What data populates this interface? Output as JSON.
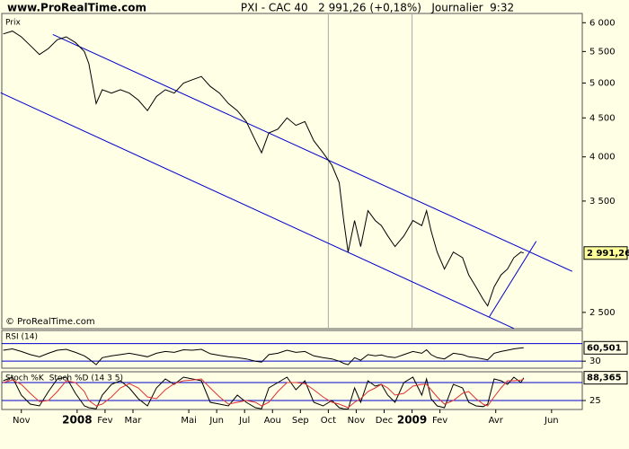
{
  "chart_data": [
    {
      "type": "line",
      "site": "www.ProRealTime.com",
      "title": "PXI - CAC 40   2 991,26 (+0,18%)   Journalier  9:32",
      "ylabel": "Prix",
      "footer": "© ProRealTime.com",
      "log_scale": true,
      "xlim": [
        -0.7,
        20.1
      ],
      "ylim": [
        2380,
        6170
      ],
      "yticks": [
        {
          "value": 6000,
          "label": "6 000"
        },
        {
          "value": 5500,
          "label": "5 500"
        },
        {
          "value": 5000,
          "label": "5 000"
        },
        {
          "value": 4500,
          "label": "4 500"
        },
        {
          "value": 4000,
          "label": "4 000"
        },
        {
          "value": 3500,
          "label": "3 500"
        },
        {
          "value": 2500,
          "label": "2 500"
        }
      ],
      "vgrid": [
        11,
        14
      ],
      "x": [
        -0.65,
        -0.32,
        0,
        0.32,
        0.65,
        0.97,
        1.29,
        1.61,
        1.94,
        2.26,
        2.42,
        2.68,
        2.9,
        3.23,
        3.55,
        3.87,
        4.19,
        4.52,
        4.84,
        5.16,
        5.48,
        5.81,
        6.13,
        6.45,
        6.77,
        7.1,
        7.42,
        7.74,
        8.06,
        8.39,
        8.61,
        8.87,
        9.19,
        9.52,
        9.84,
        10.16,
        10.48,
        10.81,
        11.13,
        11.39,
        11.55,
        11.71,
        11.94,
        12.16,
        12.42,
        12.68,
        12.9,
        13.13,
        13.39,
        13.71,
        14.03,
        14.35,
        14.52,
        14.68,
        14.9,
        15.16,
        15.48,
        15.81,
        16.03,
        16.29,
        16.55,
        16.71,
        16.94,
        17.19,
        17.42,
        17.65,
        17.9,
        18.0
      ],
      "series": [
        {
          "color": "#000000",
          "values": [
            5800,
            5850,
            5750,
            5600,
            5450,
            5550,
            5700,
            5750,
            5650,
            5500,
            5300,
            4700,
            4900,
            4850,
            4900,
            4850,
            4750,
            4600,
            4800,
            4900,
            4850,
            5000,
            5050,
            5100,
            4950,
            4850,
            4700,
            4600,
            4450,
            4200,
            4050,
            4300,
            4350,
            4500,
            4400,
            4450,
            4200,
            4050,
            3900,
            3700,
            3300,
            3000,
            3300,
            3050,
            3400,
            3300,
            3250,
            3150,
            3050,
            3150,
            3300,
            3250,
            3400,
            3200,
            3000,
            2850,
            3000,
            2950,
            2800,
            2700,
            2600,
            2550,
            2700,
            2800,
            2850,
            2950,
            3000,
            2991.26
          ],
          "value_labels": [
            null,
            null,
            null,
            null,
            null,
            null,
            null,
            null,
            null,
            null,
            null,
            null,
            null,
            null,
            null,
            null,
            null,
            null,
            null,
            null,
            null,
            null,
            null,
            null,
            null,
            null,
            null,
            null,
            null,
            null,
            null,
            null,
            null,
            null,
            null,
            null,
            null,
            null,
            null,
            null,
            null,
            null,
            null,
            null,
            null,
            null,
            null,
            null,
            null,
            null,
            null,
            null,
            null,
            null,
            null,
            null,
            null,
            null,
            null,
            null,
            null,
            null,
            null,
            null,
            null,
            null,
            null,
            "2 991,26"
          ]
        }
      ],
      "trendline_color": "#0000cc",
      "trendlines": [
        {
          "x": [
            1.13,
            19.74
          ],
          "y": [
            5790,
            2830
          ]
        },
        {
          "x": [
            -0.74,
            17.65
          ],
          "y": [
            4855,
            2381
          ]
        },
        {
          "x": [
            16.77,
            18.45
          ],
          "y": [
            2467,
            3100
          ]
        }
      ]
    },
    {
      "type": "line",
      "xlim": [
        -0.7,
        20.1
      ],
      "ylim": [
        14,
        100
      ],
      "levels": [
        70,
        30
      ],
      "level_color": "#0000cc",
      "yticks": [
        30
      ],
      "x": [
        -0.65,
        -0.32,
        0,
        0.32,
        0.65,
        0.97,
        1.29,
        1.61,
        1.94,
        2.26,
        2.42,
        2.68,
        2.9,
        3.23,
        3.55,
        3.87,
        4.19,
        4.52,
        4.84,
        5.16,
        5.48,
        5.81,
        6.13,
        6.45,
        6.77,
        7.1,
        7.42,
        7.74,
        8.06,
        8.39,
        8.61,
        8.87,
        9.19,
        9.52,
        9.84,
        10.16,
        10.48,
        10.81,
        11.13,
        11.39,
        11.55,
        11.71,
        11.94,
        12.16,
        12.42,
        12.68,
        12.9,
        13.13,
        13.39,
        13.71,
        14.03,
        14.35,
        14.52,
        14.68,
        14.9,
        15.16,
        15.48,
        15.81,
        16.03,
        16.29,
        16.55,
        16.71,
        16.94,
        17.19,
        17.42,
        17.65,
        17.9,
        18.0
      ],
      "series": [
        {
          "name": "RSI (14)",
          "color": "#000000",
          "values": [
            55,
            58,
            52,
            45,
            40,
            48,
            55,
            57,
            50,
            42,
            35,
            22,
            38,
            42,
            45,
            48,
            44,
            40,
            48,
            52,
            50,
            56,
            55,
            57,
            47,
            43,
            40,
            38,
            35,
            30,
            28,
            45,
            48,
            55,
            50,
            52,
            42,
            38,
            35,
            30,
            25,
            22,
            38,
            32,
            45,
            42,
            44,
            40,
            38,
            45,
            52,
            48,
            56,
            45,
            38,
            35,
            48,
            45,
            40,
            38,
            35,
            33,
            48,
            52,
            55,
            58,
            60,
            60.501
          ],
          "value_labels": [
            null,
            null,
            null,
            null,
            null,
            null,
            null,
            null,
            null,
            null,
            null,
            null,
            null,
            null,
            null,
            null,
            null,
            null,
            null,
            null,
            null,
            null,
            null,
            null,
            null,
            null,
            null,
            null,
            null,
            null,
            null,
            null,
            null,
            null,
            null,
            null,
            null,
            null,
            null,
            null,
            null,
            null,
            null,
            null,
            null,
            null,
            null,
            null,
            null,
            null,
            null,
            null,
            null,
            null,
            null,
            null,
            null,
            null,
            null,
            null,
            null,
            null,
            null,
            null,
            null,
            null,
            null,
            "60,501"
          ]
        }
      ]
    },
    {
      "type": "line",
      "xlim": [
        -0.7,
        20.1
      ],
      "ylim": [
        0,
        105
      ],
      "levels": [
        75,
        25
      ],
      "level_color": "#0000cc",
      "yticks": [
        25
      ],
      "xticks": [
        {
          "value": 0,
          "label": "Nov"
        },
        {
          "value": 2,
          "label": "2008"
        },
        {
          "value": 3,
          "label": "Fev"
        },
        {
          "value": 4,
          "label": "Mar"
        },
        {
          "value": 6,
          "label": "Mai"
        },
        {
          "value": 7,
          "label": "Jun"
        },
        {
          "value": 8,
          "label": "Jul"
        },
        {
          "value": 9,
          "label": "Aou"
        },
        {
          "value": 10,
          "label": "Sep"
        },
        {
          "value": 11,
          "label": "Oct"
        },
        {
          "value": 12,
          "label": "Nov"
        },
        {
          "value": 13,
          "label": "Dec"
        },
        {
          "value": 14,
          "label": "2009"
        },
        {
          "value": 15,
          "label": "Fev"
        },
        {
          "value": 17,
          "label": "Avr"
        },
        {
          "value": 19,
          "label": "Jun"
        }
      ],
      "x": [
        -0.65,
        -0.32,
        0,
        0.32,
        0.65,
        0.97,
        1.29,
        1.61,
        1.94,
        2.26,
        2.42,
        2.68,
        2.9,
        3.23,
        3.55,
        3.87,
        4.19,
        4.52,
        4.84,
        5.16,
        5.48,
        5.81,
        6.13,
        6.45,
        6.77,
        7.1,
        7.42,
        7.74,
        8.06,
        8.39,
        8.61,
        8.87,
        9.19,
        9.52,
        9.84,
        10.16,
        10.48,
        10.81,
        11.13,
        11.39,
        11.55,
        11.71,
        11.94,
        12.16,
        12.42,
        12.68,
        12.9,
        13.13,
        13.39,
        13.71,
        14.03,
        14.35,
        14.52,
        14.68,
        14.9,
        15.16,
        15.48,
        15.81,
        16.03,
        16.29,
        16.55,
        16.71,
        16.94,
        17.19,
        17.42,
        17.65,
        17.9,
        18.0
      ],
      "series": [
        {
          "name": "Stoch %K",
          "color": "#000000",
          "values": [
            80,
            90,
            40,
            15,
            10,
            50,
            85,
            90,
            45,
            10,
            5,
            2,
            40,
            70,
            80,
            60,
            30,
            10,
            60,
            85,
            70,
            90,
            85,
            80,
            20,
            15,
            10,
            40,
            20,
            5,
            2,
            60,
            75,
            90,
            55,
            80,
            20,
            10,
            25,
            5,
            2,
            1,
            60,
            20,
            80,
            65,
            70,
            40,
            20,
            75,
            90,
            40,
            85,
            30,
            10,
            5,
            70,
            60,
            20,
            10,
            8,
            15,
            85,
            80,
            70,
            90,
            75,
            88.365
          ],
          "value_labels": [
            null,
            null,
            null,
            null,
            null,
            null,
            null,
            null,
            null,
            null,
            null,
            null,
            null,
            null,
            null,
            null,
            null,
            null,
            null,
            null,
            null,
            null,
            null,
            null,
            null,
            null,
            null,
            null,
            null,
            null,
            null,
            null,
            null,
            null,
            null,
            null,
            null,
            null,
            null,
            null,
            null,
            null,
            null,
            null,
            null,
            null,
            null,
            null,
            null,
            null,
            null,
            null,
            null,
            null,
            null,
            null,
            null,
            null,
            null,
            null,
            null,
            null,
            null,
            null,
            null,
            null,
            null,
            "88,365"
          ]
        },
        {
          "name": "Stoch %D (14 3 5)",
          "color": "#dd3333",
          "values": [
            75,
            82,
            70,
            45,
            22,
            25,
            50,
            80,
            75,
            50,
            25,
            10,
            15,
            35,
            60,
            72,
            60,
            35,
            30,
            55,
            72,
            80,
            82,
            85,
            60,
            35,
            15,
            20,
            25,
            20,
            10,
            20,
            50,
            75,
            75,
            72,
            55,
            35,
            20,
            15,
            10,
            5,
            20,
            30,
            50,
            60,
            70,
            60,
            40,
            45,
            65,
            70,
            70,
            55,
            35,
            15,
            25,
            45,
            50,
            30,
            15,
            10,
            35,
            60,
            80,
            80,
            82,
            84
          ]
        }
      ]
    }
  ]
}
